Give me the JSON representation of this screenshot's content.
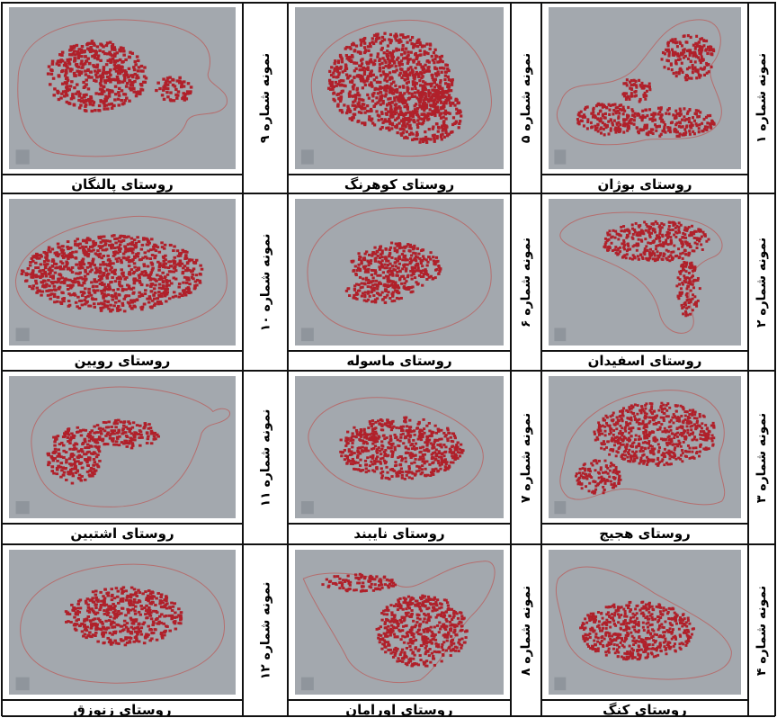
{
  "cells": [
    {
      "caption": "روستای بوژان",
      "label": "نمونه شماره ۱"
    },
    {
      "caption": "روستای کوهرنگ",
      "label": "نمونه شماره ۵"
    },
    {
      "caption": "روستای پالنگان",
      "label": "نمونه شماره ۹"
    },
    {
      "caption": "روستای اسفیدان",
      "label": "نمونه شماره ۲"
    },
    {
      "caption": "روستای ماسوله",
      "label": "نمونه شماره ۶"
    },
    {
      "caption": "روستای رویین",
      "label": "نمونه شماره ۱۰"
    },
    {
      "caption": "روستای هجیج",
      "label": "نمونه شماره ۳"
    },
    {
      "caption": "روستای نایبند",
      "label": "نمونه شماره ۷"
    },
    {
      "caption": "روستای اشتبین",
      "label": "نمونه شماره ۱۱"
    },
    {
      "caption": "روستای کنگ",
      "label": "نمونه شماره ۴"
    },
    {
      "caption": "روستای اورامان",
      "label": "نمونه شماره ۸"
    },
    {
      "caption": "روستای زنوزق",
      "label": "نمونه شماره ۱۲"
    }
  ],
  "colors": {
    "panel_background": "#a3a8ae",
    "building_fill": "#b0202a",
    "boundary_line": "#b56e6e",
    "grid_line": "#111111"
  }
}
